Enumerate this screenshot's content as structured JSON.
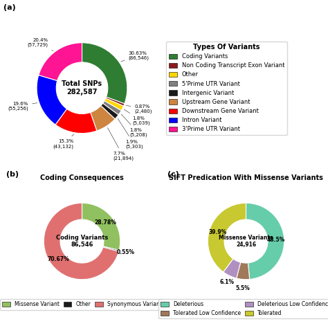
{
  "chart_data": [
    {
      "type": "pie",
      "center_label": "Total SNPs\n282,587",
      "categories": [
        "Coding Variants",
        "Non Coding Transcript Exon Variant",
        "Other",
        "5'Prime UTR Variant",
        "Intergenic Variant",
        "Upstream Gene Variant",
        "Downstream Gene Variant",
        "Intron Variant",
        "3'Prime UTR Variant"
      ],
      "values": [
        30.63,
        0.87,
        1.8,
        1.8,
        1.9,
        7.7,
        15.3,
        19.6,
        20.4
      ],
      "value_labels": [
        "30.63%\n(86,546)",
        "0.87%\n(2,480)",
        "1.8%\n(5,039)",
        "1.8%\n(5,208)",
        "1.9%\n(5,303)",
        "7.7%\n(21,894)",
        "15.3%\n(43,132)",
        "19.6%\n(55,256)",
        "20.4%\n(57,729)"
      ],
      "colors": [
        "#2e7d32",
        "#8b1a1a",
        "#ffd700",
        "#808080",
        "#1a1a1a",
        "#cd853f",
        "#ff0000",
        "#0000ff",
        "#ff1493"
      ],
      "data_labels": true,
      "legend": "center left",
      "legend_title": "Types Of Variants",
      "annotations": [
        "(a)"
      ]
    },
    {
      "type": "pie",
      "title": "Coding Consequences",
      "center_label": "Coding Variants\n86,546",
      "categories": [
        "Missense Variant",
        "Other",
        "Synonymous Variant"
      ],
      "values": [
        28.78,
        0.55,
        70.67
      ],
      "value_labels": [
        "28.78%",
        "0.55%",
        "70.67%"
      ],
      "colors": [
        "#90c060",
        "#1a1a1a",
        "#e07070"
      ],
      "data_labels": true,
      "legend": "upper center",
      "annotations": [
        "(b)"
      ]
    },
    {
      "type": "pie",
      "title": "SIFT Predication With Missense Variants",
      "center_label": "Missense Variants\n24,916",
      "categories": [
        "Deleterious",
        "Tolerated Low Confidence",
        "Deleterious Low Confidence",
        "Tolerated"
      ],
      "values": [
        48.5,
        5.5,
        6.1,
        39.9
      ],
      "value_labels": [
        "48.5%",
        "5.5%",
        "6.1%",
        "39.9%"
      ],
      "colors": [
        "#66cdaa",
        "#a0785a",
        "#b090c0",
        "#c8c830"
      ],
      "data_labels": true,
      "legend": "upper center",
      "annotations": [
        "(c)"
      ]
    }
  ]
}
